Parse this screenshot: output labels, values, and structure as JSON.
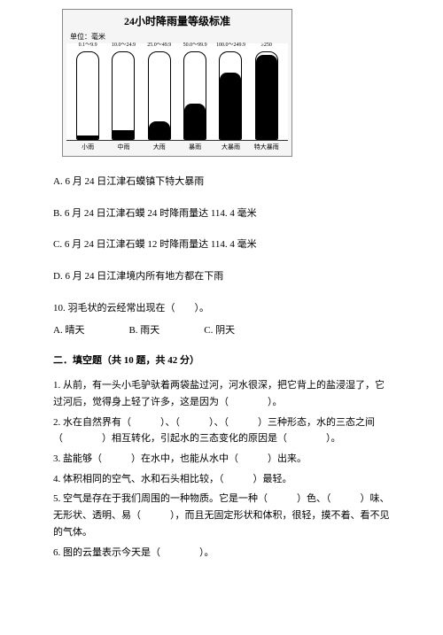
{
  "chart": {
    "title": "24小时降雨量等级标准",
    "unit": "单位：毫米",
    "bars": [
      {
        "range": "0.1～9.9",
        "outer_h": 100,
        "fill_h": 4,
        "short": true,
        "cat": "小雨"
      },
      {
        "range": "10.0～24.9",
        "outer_h": 100,
        "fill_h": 10,
        "short": true,
        "cat": "中雨"
      },
      {
        "range": "25.0～49.9",
        "outer_h": 100,
        "fill_h": 20,
        "short": false,
        "cat": "大雨"
      },
      {
        "range": "50.0～99.9",
        "outer_h": 100,
        "fill_h": 40,
        "short": false,
        "cat": "暴雨"
      },
      {
        "range": "100.0～249.9",
        "outer_h": 100,
        "fill_h": 75,
        "short": false,
        "cat": "大暴雨"
      },
      {
        "range": "≥250",
        "outer_h": 100,
        "fill_h": 95,
        "short": false,
        "cat": "特大暴雨"
      }
    ],
    "background_color": "#ffffff",
    "bar_fill_color": "#000000",
    "bar_border_color": "#000000"
  },
  "q9": {
    "A": "A. 6 月 24 日江津石蟆镇下特大暴雨",
    "B": "B. 6 月 24 日江津石蟆 24 时降雨量达 114. 4 毫米",
    "C": "C. 6 月 24 日江津石蟆 12 时降雨量达 114. 4 毫米",
    "D": "D. 6 月 24 日江津境内所有地方都在下雨"
  },
  "q10": {
    "stem": "10. 羽毛状的云经常出现在（　　）。",
    "A": "A. 晴天",
    "B": "B. 雨天",
    "C": "C. 阴天"
  },
  "section2": "二．填空题（共 10 题，共 42 分）",
  "fill": {
    "f1": "1. 从前，有一头小毛驴驮着两袋盐过河，河水很深，把它背上的盐浸湿了，它过河后，觉得身上轻了许多，这是因为（　　　　）。",
    "f2": "2. 水在自然界有（　　　）、（　　　）、（　　　）三种形态，水的三态之间（　　　　）相互转化，引起水的三态变化的原因是（　　　　）。",
    "f3": "3. 盐能够（　　　）在水中，也能从水中（　　　）出来。",
    "f4": "4. 体积相同的空气、水和石头相比较，（　　　）最轻。",
    "f5": "5. 空气是存在于我们周围的一种物质。它是一种（　　　）色、（　　　）味、无形状、透明、易（　　　），而且无固定形状和体积，很轻，摸不着、看不见的气体。",
    "f6": "6. 图的云量表示今天是（　　　　）。"
  }
}
